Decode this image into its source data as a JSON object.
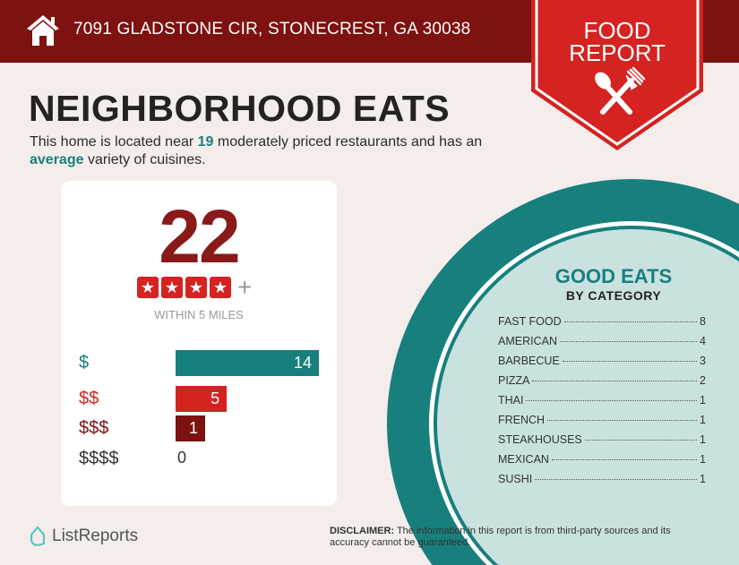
{
  "header": {
    "address": "7091 GLADSTONE CIR, STONECREST, GA 30038",
    "home_icon": "home-icon"
  },
  "banner": {
    "line1": "FOOD",
    "line2": "REPORT",
    "icon": "spoon-fork-icon"
  },
  "title": "NEIGHBORHOOD EATS",
  "description": {
    "pre": "This home is located near ",
    "count": "19",
    "mid": " moderately priced restaurants and has an ",
    "variety": "average",
    "post": " variety of cuisines."
  },
  "summary": {
    "total": "22",
    "stars": 4,
    "plus": "+",
    "within": "WITHIN 5 MILES"
  },
  "price_levels": [
    {
      "label": "$",
      "value": 14,
      "color": "#17807d"
    },
    {
      "label": "$$",
      "value": 5,
      "color": "#d42320"
    },
    {
      "label": "$$$",
      "value": 1,
      "color": "#7d1210"
    },
    {
      "label": "$$$$",
      "value": 0,
      "color": "#333333"
    }
  ],
  "good_eats": {
    "title": "GOOD EATS",
    "subtitle": "BY CATEGORY",
    "categories": [
      {
        "name": "FAST FOOD",
        "count": "8"
      },
      {
        "name": "AMERICAN",
        "count": "4"
      },
      {
        "name": "BARBECUE",
        "count": "3"
      },
      {
        "name": "PIZZA",
        "count": "2"
      },
      {
        "name": "THAI",
        "count": "1"
      },
      {
        "name": "FRENCH",
        "count": "1"
      },
      {
        "name": "STEAKHOUSES",
        "count": "1"
      },
      {
        "name": "MEXICAN",
        "count": "1"
      },
      {
        "name": "SUSHI",
        "count": "1"
      }
    ]
  },
  "footer": {
    "logo": "ListReports",
    "disclaimer_label": "DISCLAIMER:",
    "disclaimer": " The information in this report is from third-party sources and its accuracy cannot be guaranteed."
  },
  "colors": {
    "teal": "#17807d",
    "red": "#d42320",
    "dark_red": "#7d1210"
  }
}
